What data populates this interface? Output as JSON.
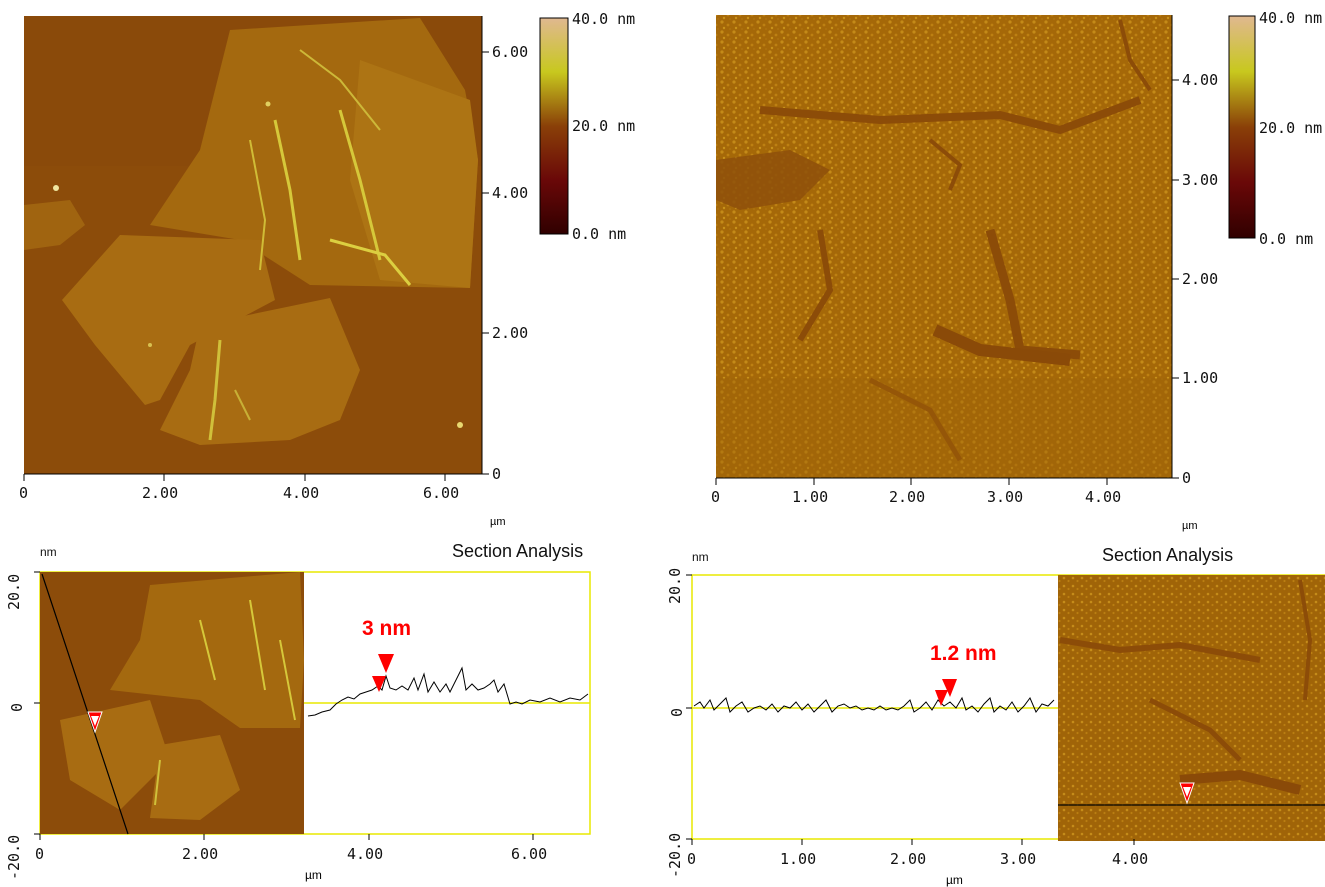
{
  "figure": {
    "panel_tl": {
      "colorbar": [
        "40.0 nm",
        "20.0 nm",
        "0.0 nm"
      ],
      "y_ticks": [
        "6.00",
        "4.00",
        "2.00",
        "0"
      ],
      "x_ticks": [
        "0",
        "2.00",
        "4.00",
        "6.00"
      ],
      "unit": "µm"
    },
    "panel_tr": {
      "colorbar": [
        "40.0 nm",
        "20.0 nm",
        "0.0 nm"
      ],
      "y_ticks": [
        "4.00",
        "3.00",
        "2.00",
        "1.00",
        "0"
      ],
      "x_ticks": [
        "0",
        "1.00",
        "2.00",
        "3.00",
        "4.00"
      ],
      "unit": "µm"
    },
    "panel_bl": {
      "title": "Section Analysis",
      "yunit": "nm",
      "y_ticks": [
        "20.0",
        "0",
        "-20.0"
      ],
      "x_ticks": [
        "0",
        "2.00",
        "4.00",
        "6.00"
      ],
      "xunit": "µm",
      "annotation": "3 nm"
    },
    "panel_br": {
      "title": "Section Analysis",
      "yunit": "nm",
      "y_ticks": [
        "20.0",
        "0",
        "-20.0"
      ],
      "x_ticks": [
        "0",
        "1.00",
        "2.00",
        "3.00",
        "4.00"
      ],
      "xunit": "µm",
      "annotation": "1.2 nm"
    },
    "colors": {
      "afm_base": "#8a4a0a",
      "afm_flake": "#a86a12",
      "afm_high": "#d9d040",
      "marker": "#ff0000",
      "frame": "#e8e800"
    }
  }
}
